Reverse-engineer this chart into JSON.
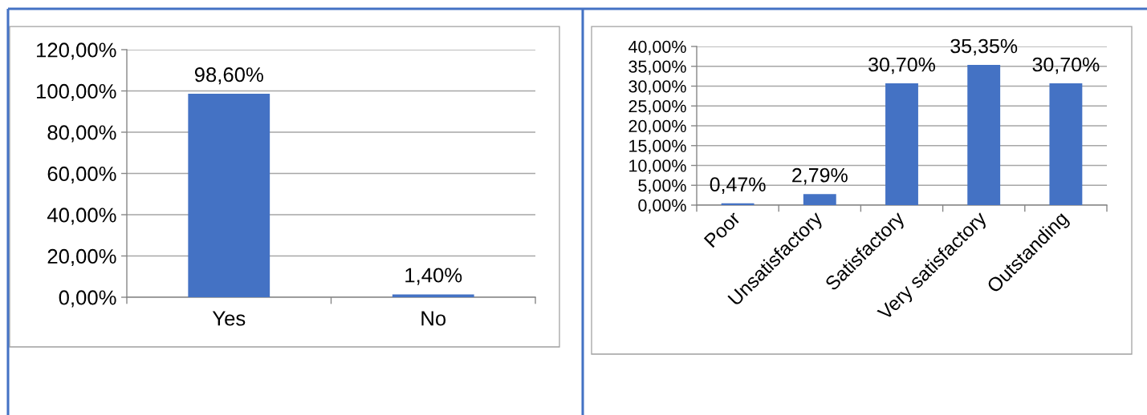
{
  "chart_data": [
    {
      "type": "bar",
      "categories": [
        "Yes",
        "No"
      ],
      "values": [
        98.6,
        1.4
      ],
      "color": "#4472c4",
      "value_labels": [
        "98,60%",
        "1,40%"
      ],
      "ylim": [
        0,
        120
      ],
      "yticks": [
        {
          "value": 0,
          "label": "0,00%"
        },
        {
          "value": 20,
          "label": "20,00%"
        },
        {
          "value": 40,
          "label": "40,00%"
        },
        {
          "value": 60,
          "label": "60,00%"
        },
        {
          "value": 80,
          "label": "80,00%"
        },
        {
          "value": 100,
          "label": "100,00%"
        },
        {
          "value": 120,
          "label": "120,00%"
        }
      ],
      "grid": "y"
    },
    {
      "type": "bar",
      "categories": [
        "Poor",
        "Unsatisfactory",
        "Satisfactory",
        "Very satisfactory",
        "Outstanding"
      ],
      "values": [
        0.47,
        2.79,
        30.7,
        35.35,
        30.7
      ],
      "color": "#4472c4",
      "value_labels": [
        "0,47%",
        "2,79%",
        "30,70%",
        "35,35%",
        "30,70%"
      ],
      "ylim": [
        0,
        40
      ],
      "yticks": [
        {
          "value": 0,
          "label": "0,00%"
        },
        {
          "value": 5,
          "label": "5,00%"
        },
        {
          "value": 10,
          "label": "10,00%"
        },
        {
          "value": 15,
          "label": "15,00%"
        },
        {
          "value": 20,
          "label": "20,00%"
        },
        {
          "value": 25,
          "label": "25,00%"
        },
        {
          "value": 30,
          "label": "30,00%"
        },
        {
          "value": 35,
          "label": "35,00%"
        },
        {
          "value": 40,
          "label": "40,00%"
        }
      ],
      "grid": "y"
    }
  ]
}
